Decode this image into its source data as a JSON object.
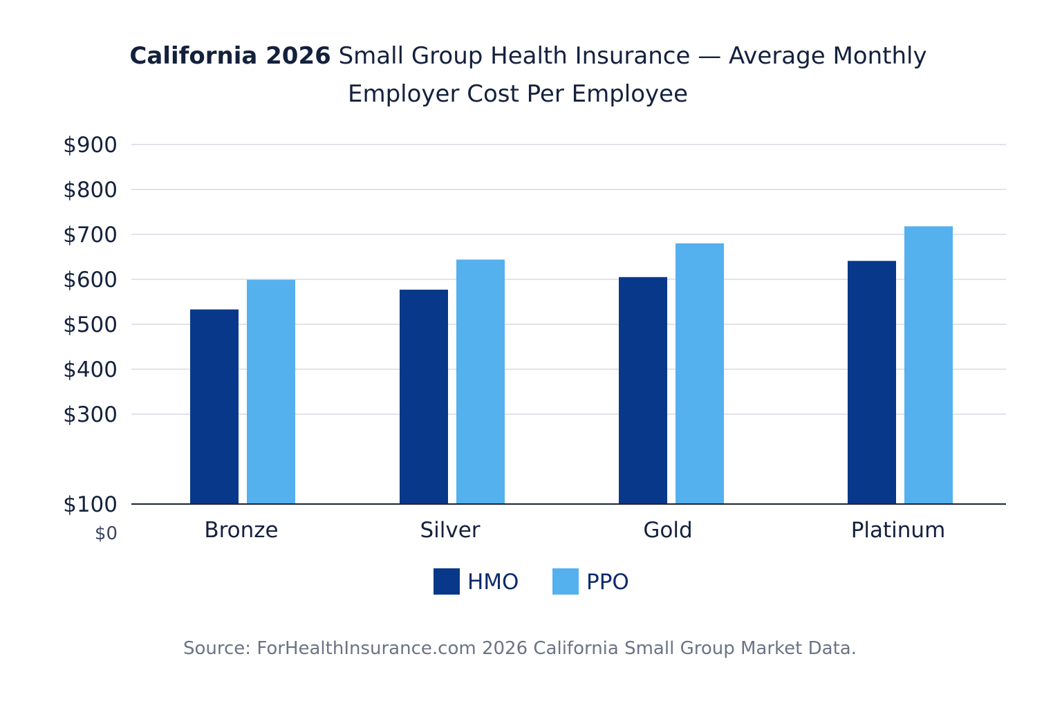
{
  "chart_data": {
    "type": "bar",
    "title_bold": "California 2026",
    "title_rest_line1": " Small Group Health Insurance — Average Monthly",
    "title_line2": "Employer Cost Per Employee",
    "categories": [
      "Bronze",
      "Silver",
      "Gold",
      "Platinum"
    ],
    "series": [
      {
        "name": "HMO",
        "values": [
          533,
          577,
          605,
          641
        ],
        "color": "#083889"
      },
      {
        "name": "PPO",
        "values": [
          599,
          644,
          680,
          718
        ],
        "color": "#55b0ee"
      }
    ],
    "y_ticks": [
      "$900",
      "$800",
      "$700",
      "$600",
      "$500",
      "$400",
      "$300",
      "$100"
    ],
    "y_tick_values": [
      900,
      800,
      700,
      600,
      500,
      400,
      300,
      100
    ],
    "y_baseline_label": "$0",
    "ylim": [
      100,
      900
    ],
    "grid": true,
    "legend_position": "bottom-center",
    "source": "Source: ForHealthInsurance.com 2026 California Small Group Market Data."
  }
}
